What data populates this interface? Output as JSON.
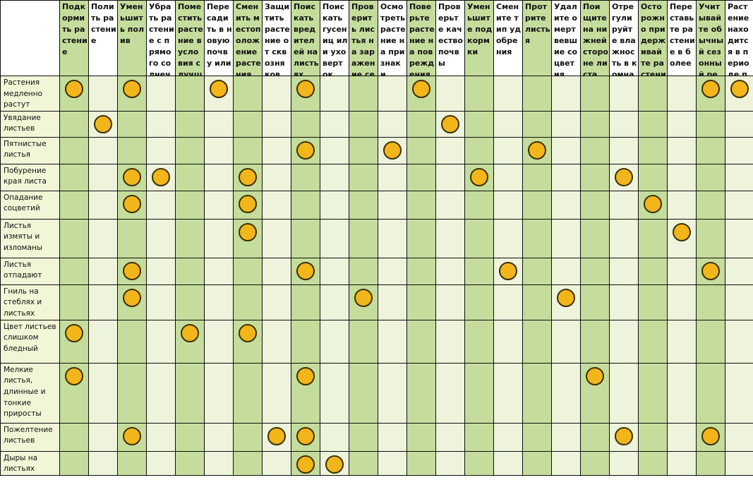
{
  "table": {
    "columns": [
      "Подкормить растение",
      "Полить растение",
      "Уменьшить полив",
      "Убрать растение с прямого солнечного",
      "Поместить растение в условия с лучшим",
      "Пересадить в новую почву или",
      "Сменить местоположение растения",
      "Защитить растение от сквозняков",
      "Поискать вредителей на листьях",
      "Поискать гусениц или уховерток",
      "Проверить листья на заражение серой",
      "Осмотреть растение на признаки",
      "Поверьте растение на повреждения",
      "Проверьте качество почвы",
      "Уменьшите подкормки",
      "Смените тип удобрения",
      "Протрите листья",
      "Удалите омертвевшие соцветия",
      "Поищите на нижней стороне листа",
      "Отрегулируйте влажность в комнате",
      "Осторожно придерживайте растение",
      "Переставьте растение в более",
      "Учитывайте обычный сезонный режим",
      "Растение находится в периоде покоя"
    ],
    "rows": [
      {
        "label": "Растения медленно растут",
        "marks": [
          0,
          2,
          5,
          8,
          12,
          22,
          23
        ]
      },
      {
        "label": "Увядание листьев",
        "marks": [
          1,
          13
        ]
      },
      {
        "label": "Пятнистые листья",
        "marks": [
          8,
          11,
          16
        ]
      },
      {
        "label": "Побурение края листа",
        "marks": [
          2,
          3,
          6,
          14,
          19
        ]
      },
      {
        "label": "Опадание соцветий",
        "marks": [
          2,
          6,
          20
        ]
      },
      {
        "label": "Листья измяты и изломаны",
        "marks": [
          6,
          21
        ]
      },
      {
        "label": "Листья отпадают",
        "marks": [
          2,
          8,
          15,
          22
        ]
      },
      {
        "label": "Гниль на стеблях и листьях",
        "marks": [
          2,
          10,
          17
        ]
      },
      {
        "label": "Цвет листьев слишком бледный",
        "marks": [
          0,
          4,
          6
        ]
      },
      {
        "label": "Мелкие листья, длинные и тонкие приросты",
        "marks": [
          0,
          8,
          18
        ]
      },
      {
        "label": "Пожелтение листьев",
        "marks": [
          2,
          7,
          8,
          19,
          22
        ]
      },
      {
        "label": "Дыры на листьях",
        "marks": [
          8,
          9
        ]
      }
    ]
  },
  "colors": {
    "column_green": "#c5dd9c",
    "column_light": "#eef4dc",
    "label_bg": "#f1f6d6",
    "marker_fill": "#f3b61a",
    "marker_border": "#3d3100",
    "grid_line": "#0e0e0e"
  }
}
